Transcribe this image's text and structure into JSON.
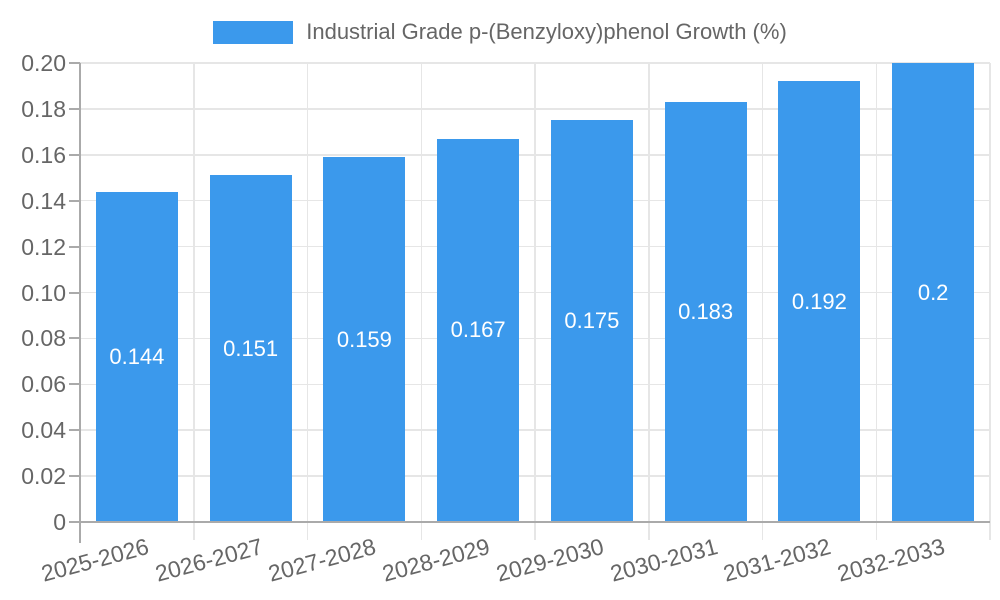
{
  "chart_data": {
    "type": "bar",
    "title": "Industrial Grade p-(Benzyloxy)phenol Growth (%)",
    "categories": [
      "2025-2026",
      "2026-2027",
      "2027-2028",
      "2028-2029",
      "2029-2030",
      "2030-2031",
      "2031-2032",
      "2032-2033"
    ],
    "values": [
      0.144,
      0.151,
      0.159,
      0.167,
      0.175,
      0.183,
      0.192,
      0.2
    ],
    "value_labels": [
      "0.144",
      "0.151",
      "0.159",
      "0.167",
      "0.175",
      "0.183",
      "0.192",
      "0.2"
    ],
    "xlabel": "",
    "ylabel": "",
    "ylim": [
      0,
      0.2
    ],
    "yticks": [
      0,
      0.02,
      0.04,
      0.06,
      0.08,
      0.1,
      0.12,
      0.14,
      0.16,
      0.18,
      0.2
    ],
    "ytick_labels": [
      "0",
      "0.02",
      "0.04",
      "0.06",
      "0.08",
      "0.10",
      "0.12",
      "0.14",
      "0.16",
      "0.18",
      "0.20"
    ],
    "grid": true,
    "legend_position": "top-center",
    "xtick_rotation_deg": -15,
    "colors": {
      "bar": "#3B99EC",
      "bar_label": "#FFFFFF",
      "axis_text": "#666666",
      "gridline": "#E6E6E6",
      "axis_line": "#AAAAAA",
      "background": "#FFFFFF"
    }
  }
}
